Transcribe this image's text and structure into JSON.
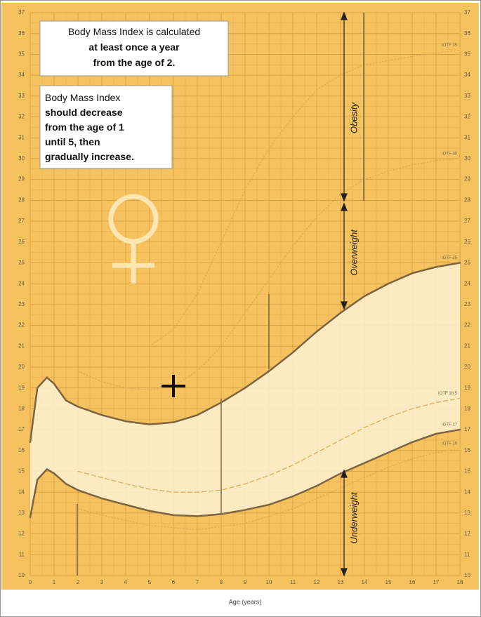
{
  "chart_data": {
    "type": "line",
    "xlabel": "Age (years)",
    "xlim": [
      0,
      18
    ],
    "xticks": [
      0,
      1,
      2,
      3,
      4,
      5,
      6,
      7,
      8,
      9,
      10,
      11,
      12,
      13,
      14,
      15,
      16,
      17,
      18
    ],
    "ylim": [
      10,
      37
    ],
    "yticks": [
      10,
      11,
      12,
      13,
      14,
      15,
      16,
      17,
      18,
      19,
      20,
      21,
      22,
      23,
      24,
      25,
      26,
      27,
      28,
      29,
      30,
      31,
      32,
      33,
      34,
      35,
      36,
      37
    ],
    "grid": true,
    "series": [
      {
        "name": "IOTF 35",
        "color": "#e0ab58",
        "dash": "dotted",
        "x": [
          5,
          6,
          7,
          8,
          9,
          10,
          11,
          12,
          13,
          14,
          16,
          18
        ],
        "values": [
          21.0,
          21.8,
          23.5,
          26.0,
          28.5,
          30.5,
          32.0,
          33.3,
          34.0,
          34.5,
          34.9,
          35.2
        ]
      },
      {
        "name": "IOTF 30",
        "color": "#e0ab58",
        "dash": "dotted",
        "x": [
          2,
          3,
          4,
          5,
          6,
          7,
          8,
          9,
          10,
          11,
          12,
          13,
          14,
          15,
          16,
          17,
          18
        ],
        "values": [
          19.8,
          19.3,
          19.0,
          18.9,
          19.1,
          19.8,
          21.0,
          22.6,
          24.2,
          25.8,
          27.2,
          28.3,
          29.0,
          29.4,
          29.7,
          29.9,
          30.0
        ]
      },
      {
        "name": "IOTF 25",
        "color": "#7d6440",
        "dash": "solid",
        "x": [
          0,
          0.3,
          0.7,
          1,
          1.5,
          2,
          3,
          4,
          5,
          6,
          7,
          8,
          9,
          10,
          11,
          12,
          13,
          14,
          15,
          16,
          17,
          18
        ],
        "values": [
          16.4,
          19.0,
          19.5,
          19.2,
          18.4,
          18.1,
          17.7,
          17.4,
          17.25,
          17.35,
          17.7,
          18.3,
          19.0,
          19.8,
          20.7,
          21.7,
          22.6,
          23.4,
          24.0,
          24.5,
          24.8,
          25.0
        ]
      },
      {
        "name": "IOTF 18.5",
        "color": "#e0ab58",
        "dash": "dashed",
        "x": [
          2,
          3,
          4,
          5,
          6,
          7,
          8,
          9,
          10,
          11,
          12,
          13,
          14,
          15,
          16,
          17,
          18
        ],
        "values": [
          15.0,
          14.7,
          14.4,
          14.15,
          14.0,
          14.0,
          14.1,
          14.4,
          14.8,
          15.3,
          15.9,
          16.5,
          17.1,
          17.6,
          18.0,
          18.3,
          18.5
        ]
      },
      {
        "name": "IOTF 17",
        "color": "#7d6440",
        "dash": "solid",
        "x": [
          0,
          0.3,
          0.7,
          1,
          1.5,
          2,
          3,
          4,
          5,
          6,
          7,
          8,
          9,
          10,
          11,
          12,
          13,
          14,
          15,
          16,
          17,
          18
        ],
        "values": [
          12.8,
          14.6,
          15.1,
          14.9,
          14.4,
          14.1,
          13.7,
          13.4,
          13.1,
          12.9,
          12.85,
          12.95,
          13.15,
          13.4,
          13.8,
          14.3,
          14.9,
          15.4,
          15.9,
          16.4,
          16.8,
          17.0
        ]
      },
      {
        "name": "IOTF 16",
        "color": "#e0ab58",
        "dash": "dotted",
        "x": [
          2,
          3,
          5,
          7,
          9,
          11,
          13,
          15,
          16,
          17,
          18
        ],
        "values": [
          13.2,
          12.9,
          12.4,
          12.2,
          12.5,
          13.2,
          14.2,
          15.2,
          15.6,
          15.9,
          16.1
        ]
      }
    ],
    "annotations": {
      "box1": [
        "Body Mass Index is calculated",
        "at least once a year",
        "from the age of 2."
      ],
      "box2": [
        "Body Mass Index",
        "should decrease",
        "from the age of 1",
        "until 5, then",
        "gradually increase."
      ],
      "obesity": "Obesity",
      "overweight": "Overweight",
      "underweight": "Underweight"
    }
  }
}
